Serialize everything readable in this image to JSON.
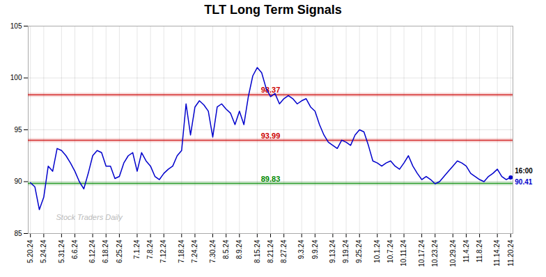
{
  "chart_data": {
    "type": "line",
    "title": "TLT Long Term Signals",
    "categories": [
      "5.20.24",
      null,
      null,
      "5.24.24",
      null,
      null,
      null,
      "5.31.24",
      null,
      null,
      "6.6.24",
      null,
      null,
      null,
      "6.12.24",
      null,
      null,
      "6.18.24",
      null,
      null,
      "6.25.24",
      null,
      null,
      null,
      "7.1.24",
      null,
      null,
      "7.8.24",
      null,
      null,
      "7.12.24",
      null,
      null,
      null,
      "7.18.24",
      null,
      null,
      "7.24.24",
      null,
      null,
      null,
      "7.30.24",
      null,
      null,
      "8.5.24",
      null,
      null,
      "8.9.24",
      null,
      null,
      null,
      "8.15.24",
      null,
      null,
      "8.21.24",
      null,
      null,
      "8.27.24",
      null,
      null,
      null,
      "9.3.24",
      null,
      null,
      "9.9.24",
      null,
      null,
      null,
      "9.13.24",
      null,
      null,
      "9.19.24",
      null,
      null,
      "9.25.24",
      null,
      null,
      null,
      "10.1.24",
      null,
      null,
      "10.7.24",
      null,
      null,
      "10.11.24",
      null,
      null,
      null,
      "10.17.24",
      null,
      null,
      "10.23.24",
      null,
      null,
      null,
      "10.29.24",
      null,
      null,
      "11.4.24",
      null,
      null,
      "11.8.24",
      null,
      null,
      null,
      "11.14.24",
      null,
      null,
      "11.20.24"
    ],
    "values": [
      89.9,
      89.5,
      87.3,
      88.5,
      91.5,
      91.0,
      93.2,
      93.0,
      92.5,
      91.8,
      91.0,
      90.0,
      89.3,
      90.8,
      92.5,
      93.0,
      92.8,
      91.5,
      91.5,
      90.3,
      90.5,
      91.8,
      92.5,
      92.8,
      91.0,
      92.8,
      92.0,
      91.5,
      90.5,
      90.2,
      90.8,
      91.2,
      91.5,
      92.5,
      93.0,
      97.5,
      94.5,
      97.2,
      97.8,
      97.4,
      96.8,
      94.3,
      97.2,
      97.5,
      97.0,
      96.6,
      95.5,
      96.8,
      95.5,
      98.2,
      100.2,
      101.0,
      100.5,
      99.0,
      98.2,
      98.5,
      97.5,
      98.0,
      98.3,
      98.0,
      97.5,
      97.8,
      98.0,
      97.2,
      96.8,
      95.5,
      94.5,
      93.8,
      93.5,
      93.2,
      94.0,
      93.8,
      93.5,
      94.5,
      95.0,
      94.8,
      93.5,
      92.0,
      91.8,
      91.5,
      91.8,
      92.0,
      91.5,
      91.2,
      91.8,
      92.5,
      91.5,
      90.8,
      90.2,
      90.5,
      90.2,
      89.8,
      90.0,
      90.5,
      91.0,
      91.5,
      92.0,
      91.8,
      91.5,
      90.8,
      90.5,
      90.2,
      90.0,
      90.5,
      90.8,
      91.2,
      90.5,
      90.2,
      90.41
    ],
    "color": "#0000cc",
    "ylim": [
      85,
      105
    ],
    "yticks": [
      85,
      90,
      95,
      100,
      105
    ],
    "grid": true,
    "reference_lines": [
      {
        "value": 98.37,
        "label": "98.37",
        "color": "#cc0000"
      },
      {
        "value": 93.99,
        "label": "93.99",
        "color": "#cc0000"
      },
      {
        "value": 89.83,
        "label": "89.83",
        "color": "#008800"
      }
    ],
    "last_label": "16:00",
    "last_value": 90.41,
    "watermark": "Stock Traders Daily",
    "watermark_color": "#bbbbbb"
  }
}
